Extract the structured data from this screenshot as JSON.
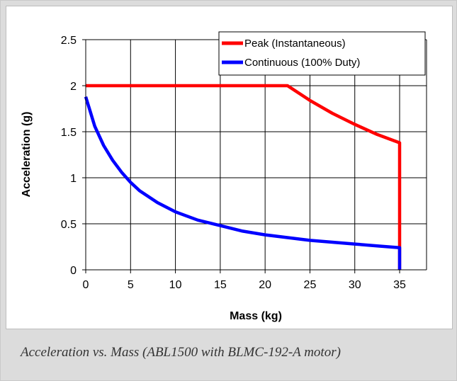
{
  "caption": "Acceleration vs. Mass (ABL1500 with BLMC-192-A motor)",
  "chart_data": {
    "type": "line",
    "xlabel": "Mass (kg)",
    "ylabel": "Acceleration (g)",
    "xlim": [
      0,
      38
    ],
    "ylim": [
      0,
      2.5
    ],
    "xticks": [
      "0",
      "5",
      "10",
      "15",
      "20",
      "25",
      "30",
      "35"
    ],
    "yticks": [
      "0",
      "0.5",
      "1",
      "1.5",
      "2",
      "2.5"
    ],
    "grid": true,
    "legend_position": "top-right",
    "series": [
      {
        "name": "Peak (Instantaneous)",
        "color": "#ff0000",
        "x": [
          0,
          22.5,
          25,
          27.5,
          30,
          32.5,
          35,
          35
        ],
        "y": [
          2.0,
          2.0,
          1.84,
          1.7,
          1.58,
          1.47,
          1.38,
          0
        ]
      },
      {
        "name": "Continuous (100% Duty)",
        "color": "#0000ff",
        "x": [
          0,
          1,
          2,
          3,
          4,
          5,
          6,
          8,
          10,
          12.5,
          15,
          17.5,
          20,
          22.5,
          25,
          27.5,
          30,
          32.5,
          35,
          35
        ],
        "y": [
          1.88,
          1.56,
          1.35,
          1.19,
          1.06,
          0.95,
          0.86,
          0.73,
          0.63,
          0.54,
          0.48,
          0.42,
          0.38,
          0.35,
          0.32,
          0.3,
          0.28,
          0.26,
          0.24,
          0
        ]
      }
    ]
  }
}
